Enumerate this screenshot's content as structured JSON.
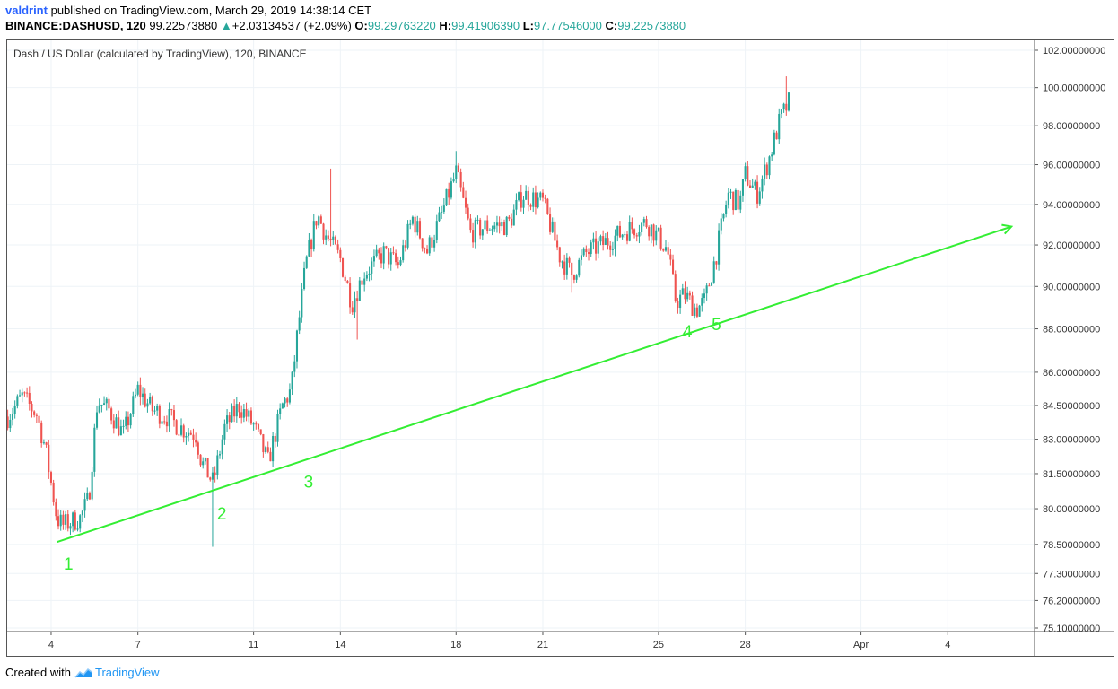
{
  "header": {
    "author": "valdrint",
    "published_text": "published on TradingView.com, March 29, 2019 14:38:14 CET",
    "symbol": "BINANCE:DASHUSD, 120",
    "last_price": "99.22573880",
    "change_arrow": "▲",
    "change": "+2.03134537 (+2.09%)",
    "o_label": "O:",
    "o_value": "99.29763220",
    "h_label": "H:",
    "h_value": "99.41906390",
    "l_label": "L:",
    "l_value": "97.77546000",
    "c_label": "C:",
    "c_value": "99.22573880"
  },
  "chart": {
    "legend": "Dash / US Dollar (calculated by TradingView), 120, BINANCE",
    "up_color": "#26a69a",
    "down_color": "#ef5350",
    "trendline_color": "#33ee33"
  },
  "chart_data": {
    "type": "candlestick",
    "title": "Dash / US Dollar (calculated by TradingView), 120, BINANCE",
    "y_tick_labels": [
      "102.00000000",
      "100.00000000",
      "98.00000000",
      "96.00000000",
      "94.00000000",
      "92.00000000",
      "90.00000000",
      "88.00000000",
      "86.00000000",
      "84.50000000",
      "83.00000000",
      "81.50000000",
      "80.00000000",
      "78.50000000",
      "77.30000000",
      "76.20000000",
      "75.10000000"
    ],
    "y_tick_values": [
      102,
      100,
      98,
      96,
      94,
      92,
      90,
      88,
      86,
      84.5,
      83,
      81.5,
      80,
      78.5,
      77.3,
      76.2,
      75.1
    ],
    "x_tick_labels": [
      "4",
      "7",
      "11",
      "14",
      "18",
      "21",
      "25",
      "28",
      "Apr",
      "4"
    ],
    "x_tick_days": [
      4,
      7,
      11,
      14,
      18,
      21,
      25,
      28,
      32,
      35
    ],
    "ylim": [
      75.1,
      102
    ],
    "xlim_days": [
      2.45,
      38
    ],
    "scale": "log",
    "grid": true,
    "anchors": [
      {
        "day": 2.5,
        "price": 84.0
      },
      {
        "day": 3.0,
        "price": 84.9
      },
      {
        "day": 3.5,
        "price": 84.1
      },
      {
        "day": 3.8,
        "price": 82.6
      },
      {
        "day": 4.2,
        "price": 79.6
      },
      {
        "day": 4.4,
        "price": 79.3
      },
      {
        "day": 5.0,
        "price": 79.6
      },
      {
        "day": 5.3,
        "price": 80.4
      },
      {
        "day": 5.6,
        "price": 84.7
      },
      {
        "day": 6.0,
        "price": 84.3
      },
      {
        "day": 6.5,
        "price": 83.2
      },
      {
        "day": 7.0,
        "price": 85.2
      },
      {
        "day": 7.5,
        "price": 84.3
      },
      {
        "day": 8.0,
        "price": 84.0
      },
      {
        "day": 8.5,
        "price": 83.5
      },
      {
        "day": 9.0,
        "price": 83.2
      },
      {
        "day": 9.2,
        "price": 82.0
      },
      {
        "day": 9.6,
        "price": 81.1
      },
      {
        "day": 10.0,
        "price": 83.5
      },
      {
        "day": 10.5,
        "price": 84.5
      },
      {
        "day": 11.0,
        "price": 83.6
      },
      {
        "day": 11.5,
        "price": 82.0
      },
      {
        "day": 12.0,
        "price": 84.5
      },
      {
        "day": 12.3,
        "price": 85.2
      },
      {
        "day": 12.5,
        "price": 87.6
      },
      {
        "day": 12.8,
        "price": 91.0
      },
      {
        "day": 13.2,
        "price": 93.5
      },
      {
        "day": 13.5,
        "price": 92.5
      },
      {
        "day": 14.0,
        "price": 91.3
      },
      {
        "day": 14.4,
        "price": 89.2
      },
      {
        "day": 14.8,
        "price": 90.6
      },
      {
        "day": 15.5,
        "price": 91.6
      },
      {
        "day": 16.0,
        "price": 91.0
      },
      {
        "day": 16.5,
        "price": 93.3
      },
      {
        "day": 17.0,
        "price": 91.7
      },
      {
        "day": 17.5,
        "price": 93.5
      },
      {
        "day": 18.0,
        "price": 95.6
      },
      {
        "day": 18.5,
        "price": 92.6
      },
      {
        "day": 19.0,
        "price": 92.9
      },
      {
        "day": 19.8,
        "price": 93.0
      },
      {
        "day": 20.3,
        "price": 94.5
      },
      {
        "day": 21.0,
        "price": 94.1
      },
      {
        "day": 21.6,
        "price": 91.4
      },
      {
        "day": 22.0,
        "price": 90.6
      },
      {
        "day": 22.5,
        "price": 91.6
      },
      {
        "day": 23.0,
        "price": 92.0
      },
      {
        "day": 24.0,
        "price": 92.8
      },
      {
        "day": 24.6,
        "price": 93.1
      },
      {
        "day": 25.3,
        "price": 91.8
      },
      {
        "day": 25.6,
        "price": 89.3
      },
      {
        "day": 25.9,
        "price": 89.6
      },
      {
        "day": 26.3,
        "price": 88.9
      },
      {
        "day": 26.6,
        "price": 89.3
      },
      {
        "day": 27.0,
        "price": 91.6
      },
      {
        "day": 27.4,
        "price": 94.5
      },
      {
        "day": 27.8,
        "price": 94.0
      },
      {
        "day": 28.0,
        "price": 95.5
      },
      {
        "day": 28.4,
        "price": 94.5
      },
      {
        "day": 28.8,
        "price": 96.2
      },
      {
        "day": 29.2,
        "price": 98.3
      },
      {
        "day": 29.5,
        "price": 99.2
      }
    ],
    "spikes": [
      {
        "day": 9.6,
        "low": 78.4
      },
      {
        "day": 14.6,
        "low": 87.5
      },
      {
        "day": 18.0,
        "high": 96.7
      },
      {
        "day": 29.4,
        "high": 100.6
      },
      {
        "day": 13.7,
        "high": 95.8
      },
      {
        "day": 22.0,
        "low": 89.7
      }
    ],
    "trendline": {
      "start": {
        "day": 4.2,
        "price": 78.6
      },
      "end": {
        "day": 37.2,
        "price": 92.9
      }
    },
    "annotations": [
      {
        "text": "1",
        "day": 4.6,
        "price": 77.45
      },
      {
        "text": "2",
        "day": 9.9,
        "price": 79.55
      },
      {
        "text": "3",
        "day": 12.9,
        "price": 80.9
      },
      {
        "text": "4",
        "day": 26.0,
        "price": 87.6
      },
      {
        "text": "5",
        "day": 27.0,
        "price": 87.95
      }
    ]
  },
  "footer": {
    "created_with": "Created with",
    "brand": "TradingView"
  }
}
